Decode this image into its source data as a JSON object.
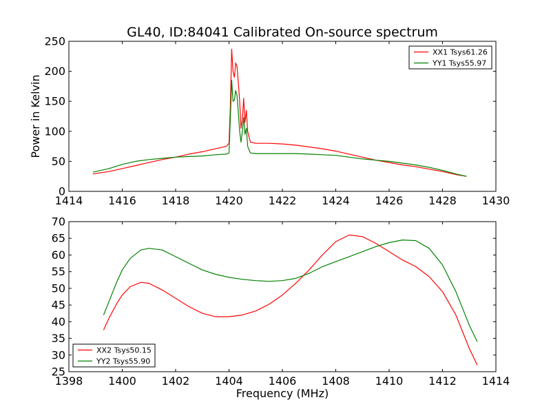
{
  "chart_data": [
    {
      "type": "line",
      "title": "GL40, ID:84041 Calibrated On-source spectrum",
      "xlabel": "",
      "ylabel": "Power in Kelvin",
      "xlim": [
        1414,
        1430
      ],
      "ylim": [
        0,
        250
      ],
      "xticks": [
        1414,
        1416,
        1418,
        1420,
        1422,
        1424,
        1426,
        1428,
        1430
      ],
      "yticks": [
        0,
        50,
        100,
        150,
        200,
        250
      ],
      "grid": false,
      "legend_position": "top-right",
      "series": [
        {
          "name": "XX1 Tsys61.26",
          "color": "#ff0000",
          "points": [
            [
              1414.9,
              29
            ],
            [
              1415.5,
              33
            ],
            [
              1416,
              38
            ],
            [
              1416.5,
              43
            ],
            [
              1417,
              48
            ],
            [
              1417.5,
              53
            ],
            [
              1418,
              57
            ],
            [
              1418.5,
              62
            ],
            [
              1419,
              66
            ],
            [
              1419.5,
              71
            ],
            [
              1419.9,
              75
            ],
            [
              1420.0,
              80
            ],
            [
              1420.05,
              140
            ],
            [
              1420.1,
              237
            ],
            [
              1420.15,
              200
            ],
            [
              1420.2,
              190
            ],
            [
              1420.25,
              214
            ],
            [
              1420.3,
              208
            ],
            [
              1420.35,
              180
            ],
            [
              1420.4,
              150
            ],
            [
              1420.45,
              105
            ],
            [
              1420.5,
              120
            ],
            [
              1420.55,
              155
            ],
            [
              1420.6,
              115
            ],
            [
              1420.65,
              135
            ],
            [
              1420.7,
              100
            ],
            [
              1420.8,
              82
            ],
            [
              1421,
              80
            ],
            [
              1421.5,
              80
            ],
            [
              1422,
              79
            ],
            [
              1422.5,
              77
            ],
            [
              1423,
              74
            ],
            [
              1423.5,
              71
            ],
            [
              1424,
              67
            ],
            [
              1424.5,
              62
            ],
            [
              1425,
              57
            ],
            [
              1425.5,
              52
            ],
            [
              1426,
              48
            ],
            [
              1426.5,
              44
            ],
            [
              1427,
              41
            ],
            [
              1427.5,
              37
            ],
            [
              1428,
              33
            ],
            [
              1428.5,
              28
            ],
            [
              1428.9,
              25
            ]
          ]
        },
        {
          "name": "YY1 Tsys55.97",
          "color": "#008000",
          "points": [
            [
              1414.9,
              32
            ],
            [
              1415.5,
              38
            ],
            [
              1416,
              45
            ],
            [
              1416.5,
              50
            ],
            [
              1417,
              53
            ],
            [
              1417.5,
              55
            ],
            [
              1418,
              57
            ],
            [
              1418.5,
              58
            ],
            [
              1419,
              59
            ],
            [
              1419.5,
              61
            ],
            [
              1419.9,
              62
            ],
            [
              1420.0,
              64
            ],
            [
              1420.05,
              120
            ],
            [
              1420.1,
              185
            ],
            [
              1420.15,
              150
            ],
            [
              1420.2,
              152
            ],
            [
              1420.25,
              168
            ],
            [
              1420.3,
              160
            ],
            [
              1420.35,
              130
            ],
            [
              1420.4,
              100
            ],
            [
              1420.45,
              82
            ],
            [
              1420.5,
              100
            ],
            [
              1420.55,
              123
            ],
            [
              1420.6,
              95
            ],
            [
              1420.65,
              105
            ],
            [
              1420.7,
              75
            ],
            [
              1420.8,
              64
            ],
            [
              1421,
              63
            ],
            [
              1421.5,
              63
            ],
            [
              1422,
              63
            ],
            [
              1422.5,
              63
            ],
            [
              1423,
              62
            ],
            [
              1423.5,
              61
            ],
            [
              1424,
              60
            ],
            [
              1424.5,
              57
            ],
            [
              1425,
              54
            ],
            [
              1425.5,
              52
            ],
            [
              1426,
              50
            ],
            [
              1426.5,
              47
            ],
            [
              1427,
              44
            ],
            [
              1427.5,
              40
            ],
            [
              1428,
              35
            ],
            [
              1428.5,
              29
            ],
            [
              1428.9,
              25
            ]
          ]
        }
      ]
    },
    {
      "type": "line",
      "title": "",
      "xlabel": "Frequency (MHz)",
      "ylabel": "",
      "xlim": [
        1398,
        1414
      ],
      "ylim": [
        25,
        70
      ],
      "xticks": [
        1398,
        1400,
        1402,
        1404,
        1406,
        1408,
        1410,
        1412,
        1414
      ],
      "yticks": [
        25,
        30,
        35,
        40,
        45,
        50,
        55,
        60,
        65,
        70
      ],
      "grid": false,
      "legend_position": "bottom-left",
      "series": [
        {
          "name": "XX2 Tsys50.15",
          "color": "#ff0000",
          "points": [
            [
              1399.3,
              37.5
            ],
            [
              1399.5,
              41
            ],
            [
              1399.8,
              45.5
            ],
            [
              1400,
              48
            ],
            [
              1400.3,
              50.5
            ],
            [
              1400.7,
              51.8
            ],
            [
              1401,
              51.5
            ],
            [
              1401.5,
              49.5
            ],
            [
              1402,
              47
            ],
            [
              1402.5,
              44.5
            ],
            [
              1403,
              42.5
            ],
            [
              1403.5,
              41.5
            ],
            [
              1404,
              41.5
            ],
            [
              1404.5,
              42
            ],
            [
              1405,
              43.2
            ],
            [
              1405.5,
              45.2
            ],
            [
              1406,
              48
            ],
            [
              1406.5,
              51.5
            ],
            [
              1407,
              55.5
            ],
            [
              1407.5,
              60
            ],
            [
              1408,
              64
            ],
            [
              1408.5,
              66
            ],
            [
              1409,
              65.5
            ],
            [
              1409.5,
              63.5
            ],
            [
              1410,
              61
            ],
            [
              1410.5,
              58.5
            ],
            [
              1411,
              56.5
            ],
            [
              1411.5,
              53.5
            ],
            [
              1412,
              49
            ],
            [
              1412.5,
              42
            ],
            [
              1413,
              32
            ],
            [
              1413.3,
              27
            ]
          ]
        },
        {
          "name": "YY2 Tsys55.90",
          "color": "#008000",
          "points": [
            [
              1399.3,
              42
            ],
            [
              1399.5,
              46
            ],
            [
              1399.8,
              52
            ],
            [
              1400,
              55.5
            ],
            [
              1400.3,
              59
            ],
            [
              1400.7,
              61.5
            ],
            [
              1401,
              62
            ],
            [
              1401.5,
              61.5
            ],
            [
              1402,
              59.5
            ],
            [
              1402.5,
              57.5
            ],
            [
              1403,
              55.5
            ],
            [
              1403.5,
              54.2
            ],
            [
              1404,
              53.3
            ],
            [
              1404.5,
              52.7
            ],
            [
              1405,
              52.3
            ],
            [
              1405.5,
              52.1
            ],
            [
              1406,
              52.3
            ],
            [
              1406.5,
              53
            ],
            [
              1407,
              54.5
            ],
            [
              1407.5,
              56.5
            ],
            [
              1408,
              58
            ],
            [
              1408.5,
              59.5
            ],
            [
              1409,
              61
            ],
            [
              1409.5,
              62.5
            ],
            [
              1410,
              63.7
            ],
            [
              1410.5,
              64.5
            ],
            [
              1411,
              64.3
            ],
            [
              1411.5,
              62
            ],
            [
              1412,
              57
            ],
            [
              1412.5,
              49
            ],
            [
              1413,
              39
            ],
            [
              1413.3,
              34
            ]
          ]
        }
      ]
    }
  ]
}
